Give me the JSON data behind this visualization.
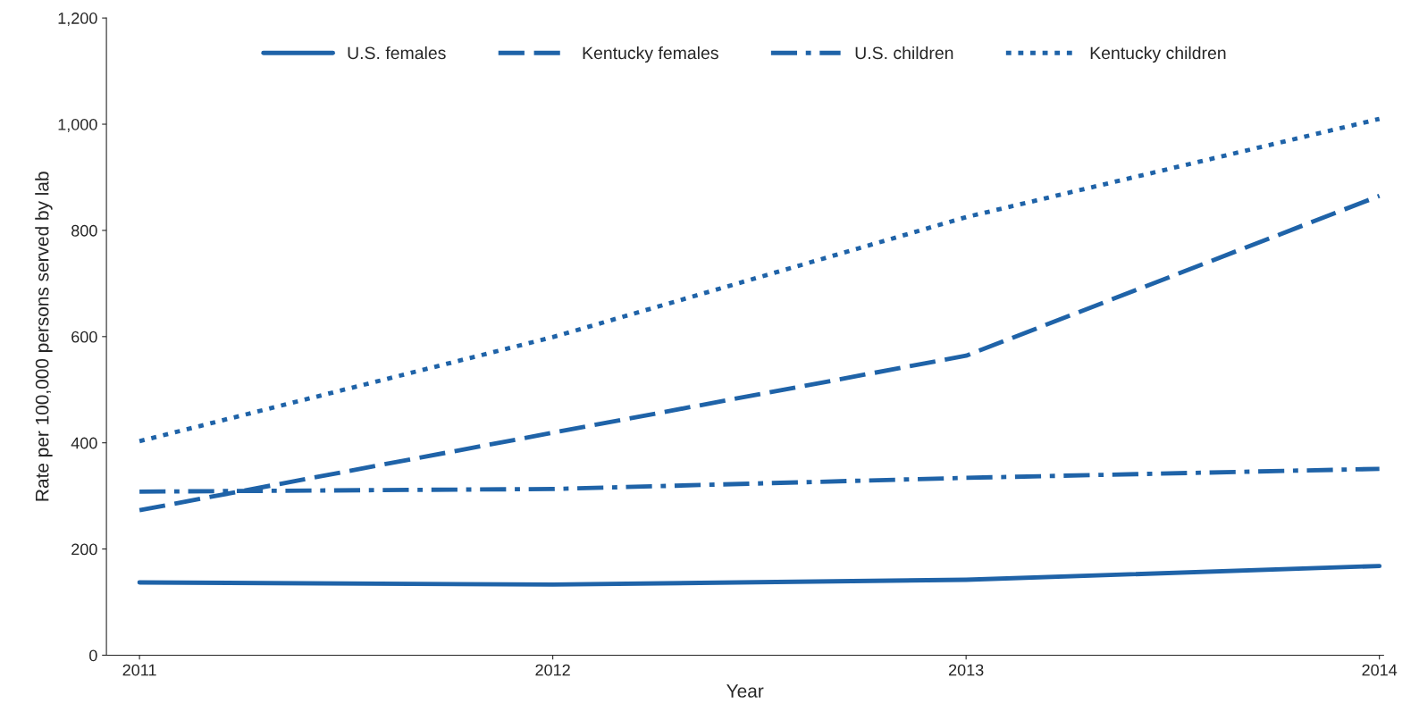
{
  "chart_data": {
    "type": "line",
    "xlabel": "Year",
    "ylabel": "Rate per 100,000 persons served by lab",
    "x": [
      2011,
      2012,
      2013,
      2014
    ],
    "series": [
      {
        "name": "U.S. females",
        "color": "#1f63a8",
        "line_style": "solid",
        "values": [
          137,
          133,
          142,
          168
        ]
      },
      {
        "name": "Kentucky females",
        "color": "#1f63a8",
        "line_style": "dashed",
        "values": [
          273,
          419,
          564,
          865
        ]
      },
      {
        "name": "U.S. children",
        "color": "#1f63a8",
        "line_style": "dashdot",
        "values": [
          308,
          313,
          334,
          351
        ]
      },
      {
        "name": "Kentucky children",
        "color": "#1f63a8",
        "line_style": "dotted",
        "values": [
          403,
          599,
          825,
          1010
        ]
      }
    ],
    "xlim": [
      2010.92,
      2014.01
    ],
    "xticks": [
      2011,
      2012,
      2013,
      2014
    ],
    "ylim": [
      0,
      1200
    ],
    "yticks": [
      0,
      {
        "value": 200,
        "label": "200"
      },
      {
        "value": 400,
        "label": "400"
      },
      {
        "value": 600,
        "label": "600"
      },
      {
        "value": 800,
        "label": "800"
      },
      {
        "value": 1000,
        "label": "1,000"
      },
      {
        "value": 1200,
        "label": "1,200"
      }
    ],
    "grid": false,
    "legend": "top",
    "marker": "none"
  }
}
